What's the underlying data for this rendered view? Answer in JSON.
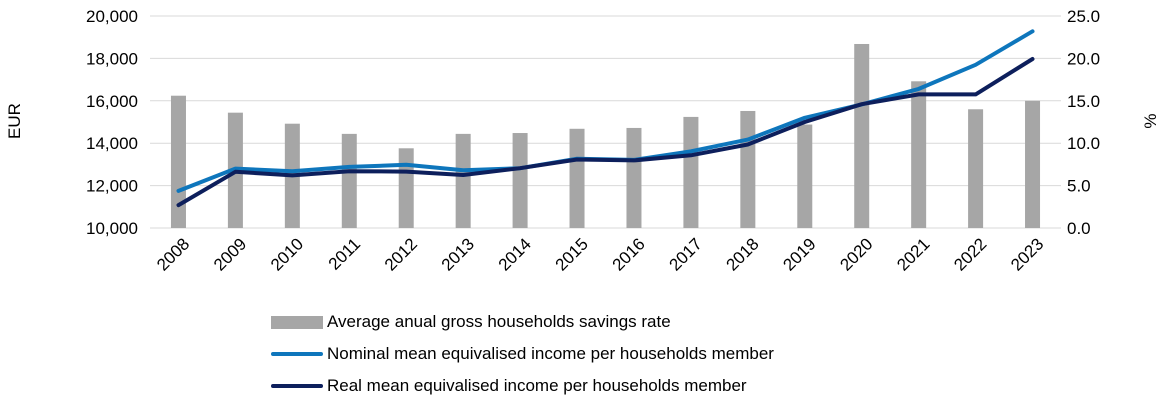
{
  "chart_data": {
    "type": "bar+line",
    "categories": [
      "2008",
      "2009",
      "2010",
      "2011",
      "2012",
      "2013",
      "2014",
      "2015",
      "2016",
      "2017",
      "2018",
      "2019",
      "2020",
      "2021",
      "2022",
      "2023"
    ],
    "bar_series": {
      "name": "Average anual gross households savings rate",
      "axis": "right",
      "color": "#a6a6a6",
      "values": [
        15.6,
        13.6,
        12.3,
        11.1,
        9.4,
        11.1,
        11.2,
        11.7,
        11.8,
        13.1,
        13.8,
        12.2,
        21.7,
        17.3,
        14.0,
        15.0
      ]
    },
    "line_series": [
      {
        "name": "Nominal mean equivalised income per households member",
        "axis": "left",
        "color": "#0e76bc",
        "values": [
          11750,
          12800,
          12680,
          12880,
          12980,
          12720,
          12820,
          13270,
          13210,
          13620,
          14170,
          15200,
          15830,
          16560,
          17700,
          19280
        ]
      },
      {
        "name": "Real mean equivalised income per households member",
        "axis": "left",
        "color": "#0d1f5c",
        "values": [
          11080,
          12650,
          12480,
          12680,
          12660,
          12500,
          12820,
          13230,
          13190,
          13430,
          13940,
          15000,
          15840,
          16300,
          16300,
          17970
        ]
      }
    ],
    "left_axis": {
      "label": "EUR",
      "min": 10000,
      "max": 20000,
      "ticks": [
        "10,000",
        "12,000",
        "14,000",
        "16,000",
        "18,000",
        "20,000"
      ]
    },
    "right_axis": {
      "label": "%",
      "min": 0,
      "max": 25,
      "ticks": [
        "0.0",
        "5.0",
        "10.0",
        "15.0",
        "20.0",
        "25.0"
      ]
    },
    "grid": true,
    "legend_position": "bottom"
  }
}
